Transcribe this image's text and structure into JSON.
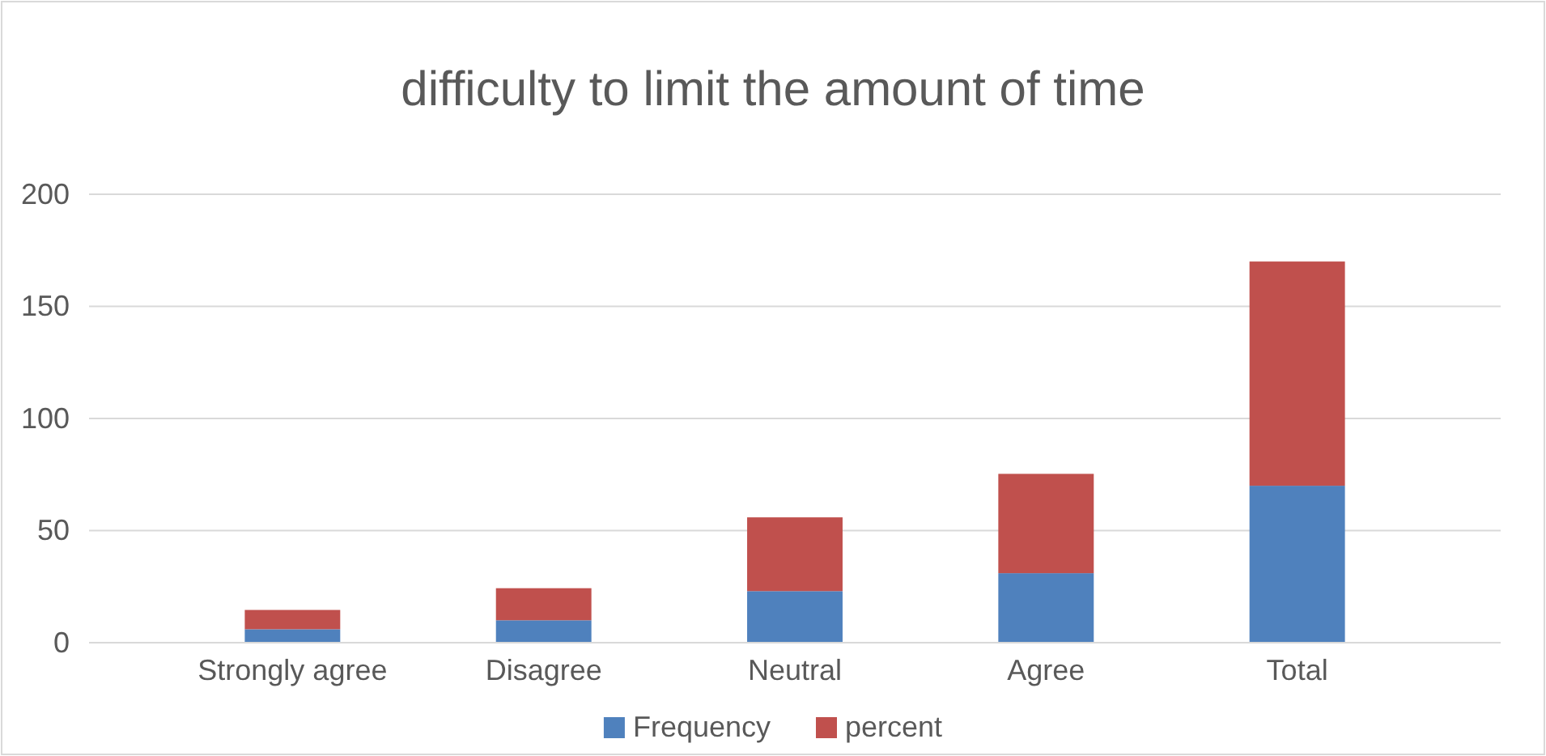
{
  "chart_data": {
    "type": "bar",
    "title": "difficulty to limit the amount of time",
    "categories": [
      "Strongly agree",
      "Disagree",
      "Neutral",
      "Agree",
      "Total"
    ],
    "series": [
      {
        "name": "Frequency",
        "color": "#4f81bd",
        "values": [
          6,
          10,
          23,
          31,
          70
        ]
      },
      {
        "name": "percent",
        "color": "#c0504d",
        "values": [
          8.6,
          14.3,
          32.9,
          44.3,
          100
        ]
      }
    ],
    "stacked": true,
    "ylim": [
      0,
      200
    ],
    "yticks": [
      0,
      50,
      100,
      150,
      200
    ],
    "grid": "y",
    "legend": "bottom"
  }
}
